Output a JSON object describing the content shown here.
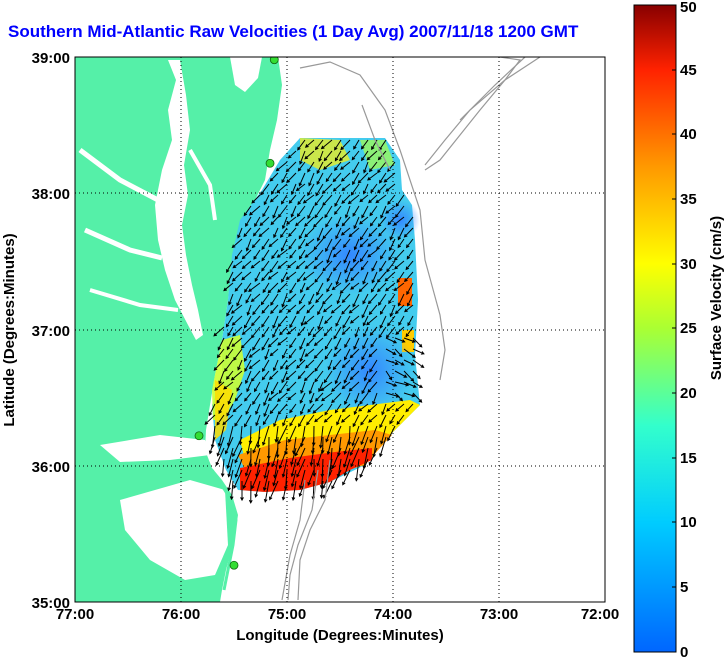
{
  "title": "Southern Mid-Atlantic Raw Velocities (1 Day Avg) 2007/11/18 1200 GMT",
  "axes": {
    "xlabel": "Longitude (Degrees:Minutes)",
    "ylabel": "Latitude (Degrees:Minutes)",
    "x_ticks": [
      "77:00",
      "76:00",
      "75:00",
      "74:00",
      "73:00",
      "72:00"
    ],
    "y_ticks": [
      "39:00",
      "38:00",
      "37:00",
      "36:00",
      "35:00"
    ]
  },
  "colorbar": {
    "label": "Surface Velocity (cm/s)",
    "ticks": [
      "0",
      "5",
      "10",
      "15",
      "20",
      "25",
      "30",
      "35",
      "40",
      "45",
      "50"
    ],
    "range": [
      0,
      50
    ]
  },
  "colors": {
    "land": "#55f0a8",
    "water": "#ffffff",
    "bathymetry": "#999999",
    "title": "#0000ff",
    "station": "#33dd33"
  },
  "stations": [
    {
      "lon": -75.12,
      "lat": 38.98
    },
    {
      "lon": -75.16,
      "lat": 38.22
    },
    {
      "lon": -75.83,
      "lat": 36.22
    },
    {
      "lon": -75.5,
      "lat": 35.27
    }
  ]
}
